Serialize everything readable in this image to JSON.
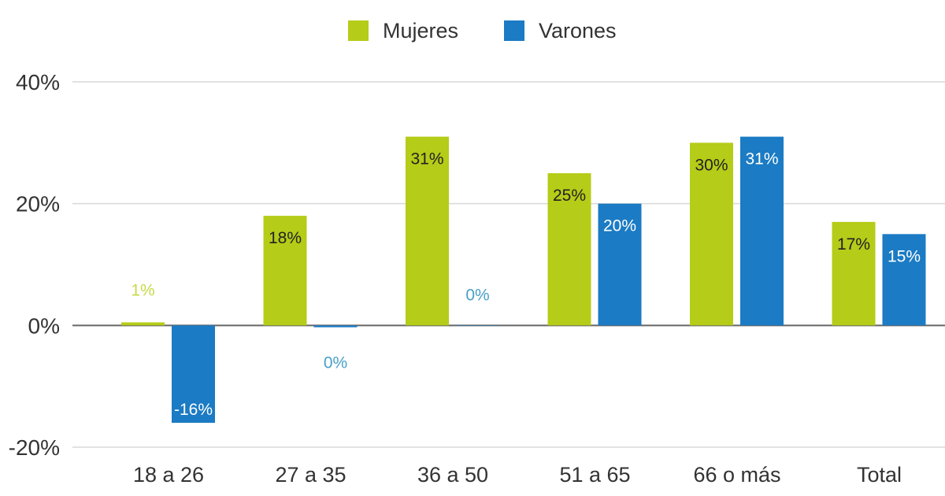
{
  "chart_data": {
    "type": "bar",
    "title": "",
    "xlabel": "",
    "ylabel": "",
    "categories": [
      "18 a  26",
      "27 a 35",
      "36 a 50",
      "51 a 65",
      "66 o más",
      "Total"
    ],
    "series": [
      {
        "name": "Mujeres",
        "color": "#b5cc18",
        "values": [
          0.5,
          18,
          31,
          25,
          30,
          17
        ],
        "labels": [
          "1%",
          "18%",
          "31%",
          "25%",
          "30%",
          "17%"
        ]
      },
      {
        "name": "Varones",
        "color": "#1b7bc4",
        "values": [
          -16,
          -0.3,
          0,
          20,
          31,
          15
        ],
        "labels": [
          "-16%",
          "0%",
          "0%",
          "20%",
          "31%",
          "15%"
        ]
      }
    ],
    "ylim": [
      -20,
      40
    ],
    "yticks": [
      -20,
      0,
      20,
      40
    ],
    "ytick_labels": [
      "-20%",
      "0%",
      "20%",
      "40%"
    ],
    "grid": true,
    "legend_position": "top-center",
    "zero_line_color": "#666666",
    "grid_color": "#d9d9d9"
  }
}
